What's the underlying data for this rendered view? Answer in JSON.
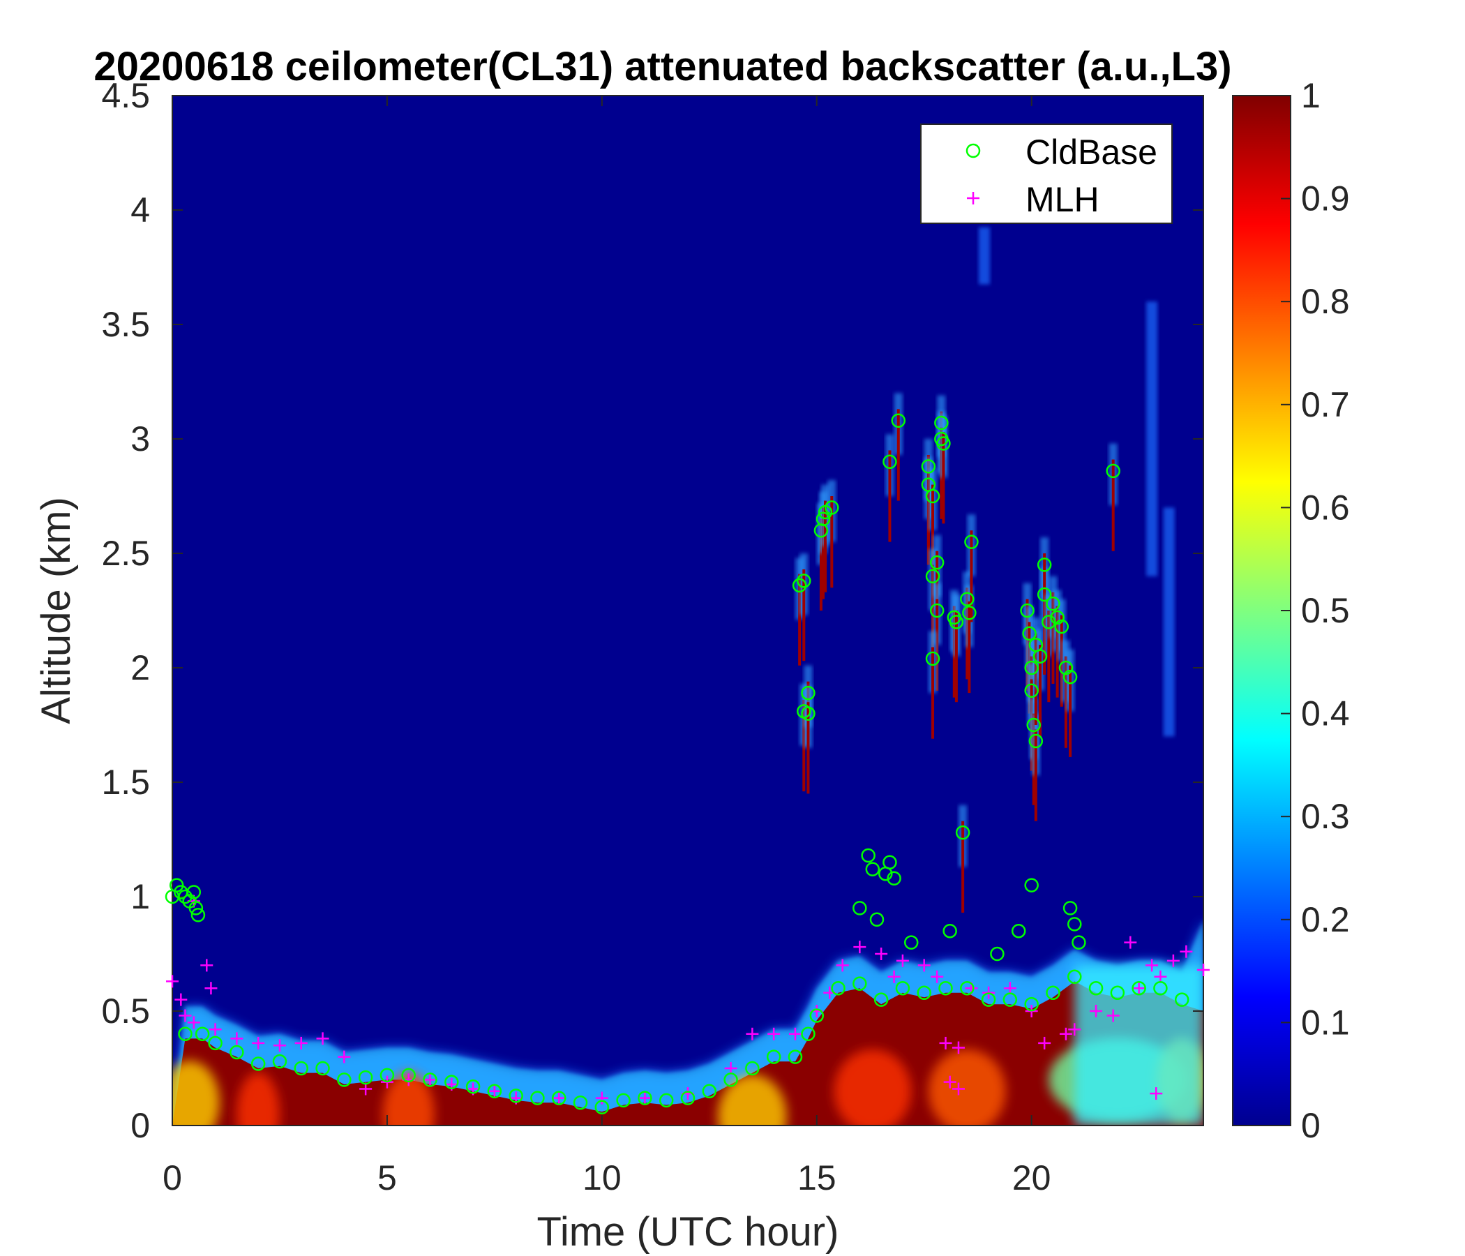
{
  "chart_data": {
    "type": "heatmap",
    "title": "20200618 ceilometer(CL31) attenuated backscatter (a.u.,L3)",
    "xlabel": "Time (UTC hour)",
    "ylabel": "Altitude (km)",
    "xlim": [
      0,
      24
    ],
    "ylim": [
      0,
      4.5
    ],
    "xticks": [
      0,
      5,
      10,
      15,
      20
    ],
    "yticks": [
      0,
      0.5,
      1,
      1.5,
      2,
      2.5,
      3,
      3.5,
      4,
      4.5
    ],
    "colorbar": {
      "colormap": "jet",
      "range": [
        0,
        1
      ],
      "ticks": [
        0,
        0.1,
        0.2,
        0.3,
        0.4,
        0.5,
        0.6,
        0.7,
        0.8,
        0.9,
        1
      ]
    },
    "legend": {
      "placement": "top-right",
      "entries": [
        "CldBase",
        "MLH"
      ]
    },
    "series": [
      {
        "name": "CldBase",
        "marker": "circle",
        "color": "#00ff00",
        "points": [
          [
            0.0,
            1.0
          ],
          [
            0.1,
            1.05
          ],
          [
            0.2,
            1.02
          ],
          [
            0.3,
            1.0
          ],
          [
            0.4,
            0.98
          ],
          [
            0.5,
            1.02
          ],
          [
            0.55,
            0.95
          ],
          [
            0.6,
            0.92
          ],
          [
            0.3,
            0.4
          ],
          [
            0.7,
            0.4
          ],
          [
            1.0,
            0.36
          ],
          [
            1.5,
            0.32
          ],
          [
            2.0,
            0.27
          ],
          [
            2.5,
            0.28
          ],
          [
            3.0,
            0.25
          ],
          [
            3.5,
            0.25
          ],
          [
            4.0,
            0.2
          ],
          [
            4.5,
            0.21
          ],
          [
            5.0,
            0.22
          ],
          [
            5.5,
            0.22
          ],
          [
            6.0,
            0.2
          ],
          [
            6.5,
            0.19
          ],
          [
            7.0,
            0.17
          ],
          [
            7.5,
            0.15
          ],
          [
            8.0,
            0.13
          ],
          [
            8.5,
            0.12
          ],
          [
            9.0,
            0.12
          ],
          [
            9.5,
            0.1
          ],
          [
            10.0,
            0.08
          ],
          [
            10.5,
            0.11
          ],
          [
            11.0,
            0.12
          ],
          [
            11.5,
            0.11
          ],
          [
            12.0,
            0.12
          ],
          [
            12.5,
            0.15
          ],
          [
            13.0,
            0.2
          ],
          [
            13.5,
            0.25
          ],
          [
            14.0,
            0.3
          ],
          [
            14.5,
            0.3
          ],
          [
            14.8,
            0.4
          ],
          [
            15.0,
            0.48
          ],
          [
            15.5,
            0.6
          ],
          [
            16.0,
            0.62
          ],
          [
            16.5,
            0.55
          ],
          [
            17.0,
            0.6
          ],
          [
            17.5,
            0.58
          ],
          [
            18.0,
            0.6
          ],
          [
            18.5,
            0.6
          ],
          [
            19.0,
            0.55
          ],
          [
            19.5,
            0.55
          ],
          [
            20.0,
            0.53
          ],
          [
            20.5,
            0.58
          ],
          [
            21.0,
            0.65
          ],
          [
            21.5,
            0.6
          ],
          [
            22.0,
            0.58
          ],
          [
            22.5,
            0.6
          ],
          [
            23.0,
            0.6
          ],
          [
            23.5,
            0.55
          ],
          [
            14.6,
            2.36
          ],
          [
            14.7,
            2.38
          ],
          [
            14.7,
            1.81
          ],
          [
            14.8,
            1.89
          ],
          [
            14.8,
            1.8
          ],
          [
            15.1,
            2.6
          ],
          [
            15.15,
            2.65
          ],
          [
            15.2,
            2.68
          ],
          [
            15.35,
            2.7
          ],
          [
            16.2,
            1.18
          ],
          [
            16.3,
            1.12
          ],
          [
            16.6,
            1.1
          ],
          [
            16.7,
            1.15
          ],
          [
            16.8,
            1.08
          ],
          [
            16.7,
            2.9
          ],
          [
            16.9,
            3.08
          ],
          [
            17.6,
            2.88
          ],
          [
            17.6,
            2.8
          ],
          [
            17.7,
            2.75
          ],
          [
            17.7,
            2.4
          ],
          [
            17.8,
            2.46
          ],
          [
            17.8,
            2.25
          ],
          [
            17.9,
            3.07
          ],
          [
            17.9,
            3.0
          ],
          [
            17.95,
            2.98
          ],
          [
            17.7,
            2.04
          ],
          [
            18.2,
            2.22
          ],
          [
            18.25,
            2.2
          ],
          [
            18.4,
            1.28
          ],
          [
            18.5,
            2.3
          ],
          [
            18.55,
            2.24
          ],
          [
            18.6,
            2.55
          ],
          [
            19.9,
            2.25
          ],
          [
            19.95,
            2.15
          ],
          [
            20.0,
            2.0
          ],
          [
            20.0,
            1.9
          ],
          [
            20.05,
            1.75
          ],
          [
            20.1,
            1.68
          ],
          [
            20.1,
            2.1
          ],
          [
            20.2,
            2.05
          ],
          [
            20.3,
            2.32
          ],
          [
            20.3,
            2.45
          ],
          [
            20.4,
            2.2
          ],
          [
            20.5,
            2.28
          ],
          [
            20.6,
            2.22
          ],
          [
            20.7,
            2.18
          ],
          [
            20.8,
            2.0
          ],
          [
            20.9,
            1.96
          ],
          [
            20.0,
            1.05
          ],
          [
            20.9,
            0.95
          ],
          [
            21.0,
            0.88
          ],
          [
            21.1,
            0.8
          ],
          [
            21.9,
            2.86
          ],
          [
            16.0,
            0.95
          ],
          [
            16.4,
            0.9
          ],
          [
            17.2,
            0.8
          ],
          [
            18.1,
            0.85
          ],
          [
            19.2,
            0.75
          ],
          [
            19.7,
            0.85
          ]
        ]
      },
      {
        "name": "MLH",
        "marker": "plus",
        "color": "#ff00ff",
        "points": [
          [
            0.0,
            0.63
          ],
          [
            0.2,
            0.55
          ],
          [
            0.3,
            0.48
          ],
          [
            0.5,
            0.45
          ],
          [
            0.5,
            0.98
          ],
          [
            0.8,
            0.7
          ],
          [
            0.9,
            0.6
          ],
          [
            1.0,
            0.42
          ],
          [
            1.5,
            0.38
          ],
          [
            2.0,
            0.36
          ],
          [
            2.5,
            0.35
          ],
          [
            3.0,
            0.36
          ],
          [
            3.5,
            0.38
          ],
          [
            4.0,
            0.3
          ],
          [
            4.5,
            0.16
          ],
          [
            5.0,
            0.19
          ],
          [
            5.5,
            0.2
          ],
          [
            6.0,
            0.2
          ],
          [
            6.5,
            0.18
          ],
          [
            7.0,
            0.16
          ],
          [
            7.5,
            0.15
          ],
          [
            8.0,
            0.12
          ],
          [
            9.0,
            0.12
          ],
          [
            10.0,
            0.12
          ],
          [
            11.0,
            0.12
          ],
          [
            12.0,
            0.14
          ],
          [
            13.0,
            0.25
          ],
          [
            13.5,
            0.4
          ],
          [
            14.0,
            0.4
          ],
          [
            14.5,
            0.4
          ],
          [
            15.0,
            0.5
          ],
          [
            15.3,
            0.58
          ],
          [
            15.6,
            0.7
          ],
          [
            16.0,
            0.78
          ],
          [
            16.5,
            0.75
          ],
          [
            16.8,
            0.65
          ],
          [
            17.0,
            0.72
          ],
          [
            17.5,
            0.7
          ],
          [
            17.8,
            0.65
          ],
          [
            18.0,
            0.36
          ],
          [
            18.3,
            0.34
          ],
          [
            18.1,
            0.19
          ],
          [
            18.3,
            0.16
          ],
          [
            18.6,
            0.6
          ],
          [
            19.0,
            0.58
          ],
          [
            19.5,
            0.6
          ],
          [
            20.0,
            0.5
          ],
          [
            20.3,
            0.36
          ],
          [
            20.8,
            0.4
          ],
          [
            21.0,
            0.42
          ],
          [
            21.5,
            0.5
          ],
          [
            21.9,
            0.48
          ],
          [
            22.3,
            0.8
          ],
          [
            22.5,
            0.6
          ],
          [
            22.8,
            0.7
          ],
          [
            23.0,
            0.65
          ],
          [
            23.3,
            0.72
          ],
          [
            23.6,
            0.76
          ],
          [
            24.0,
            0.68
          ],
          [
            22.9,
            0.14
          ]
        ]
      }
    ]
  }
}
